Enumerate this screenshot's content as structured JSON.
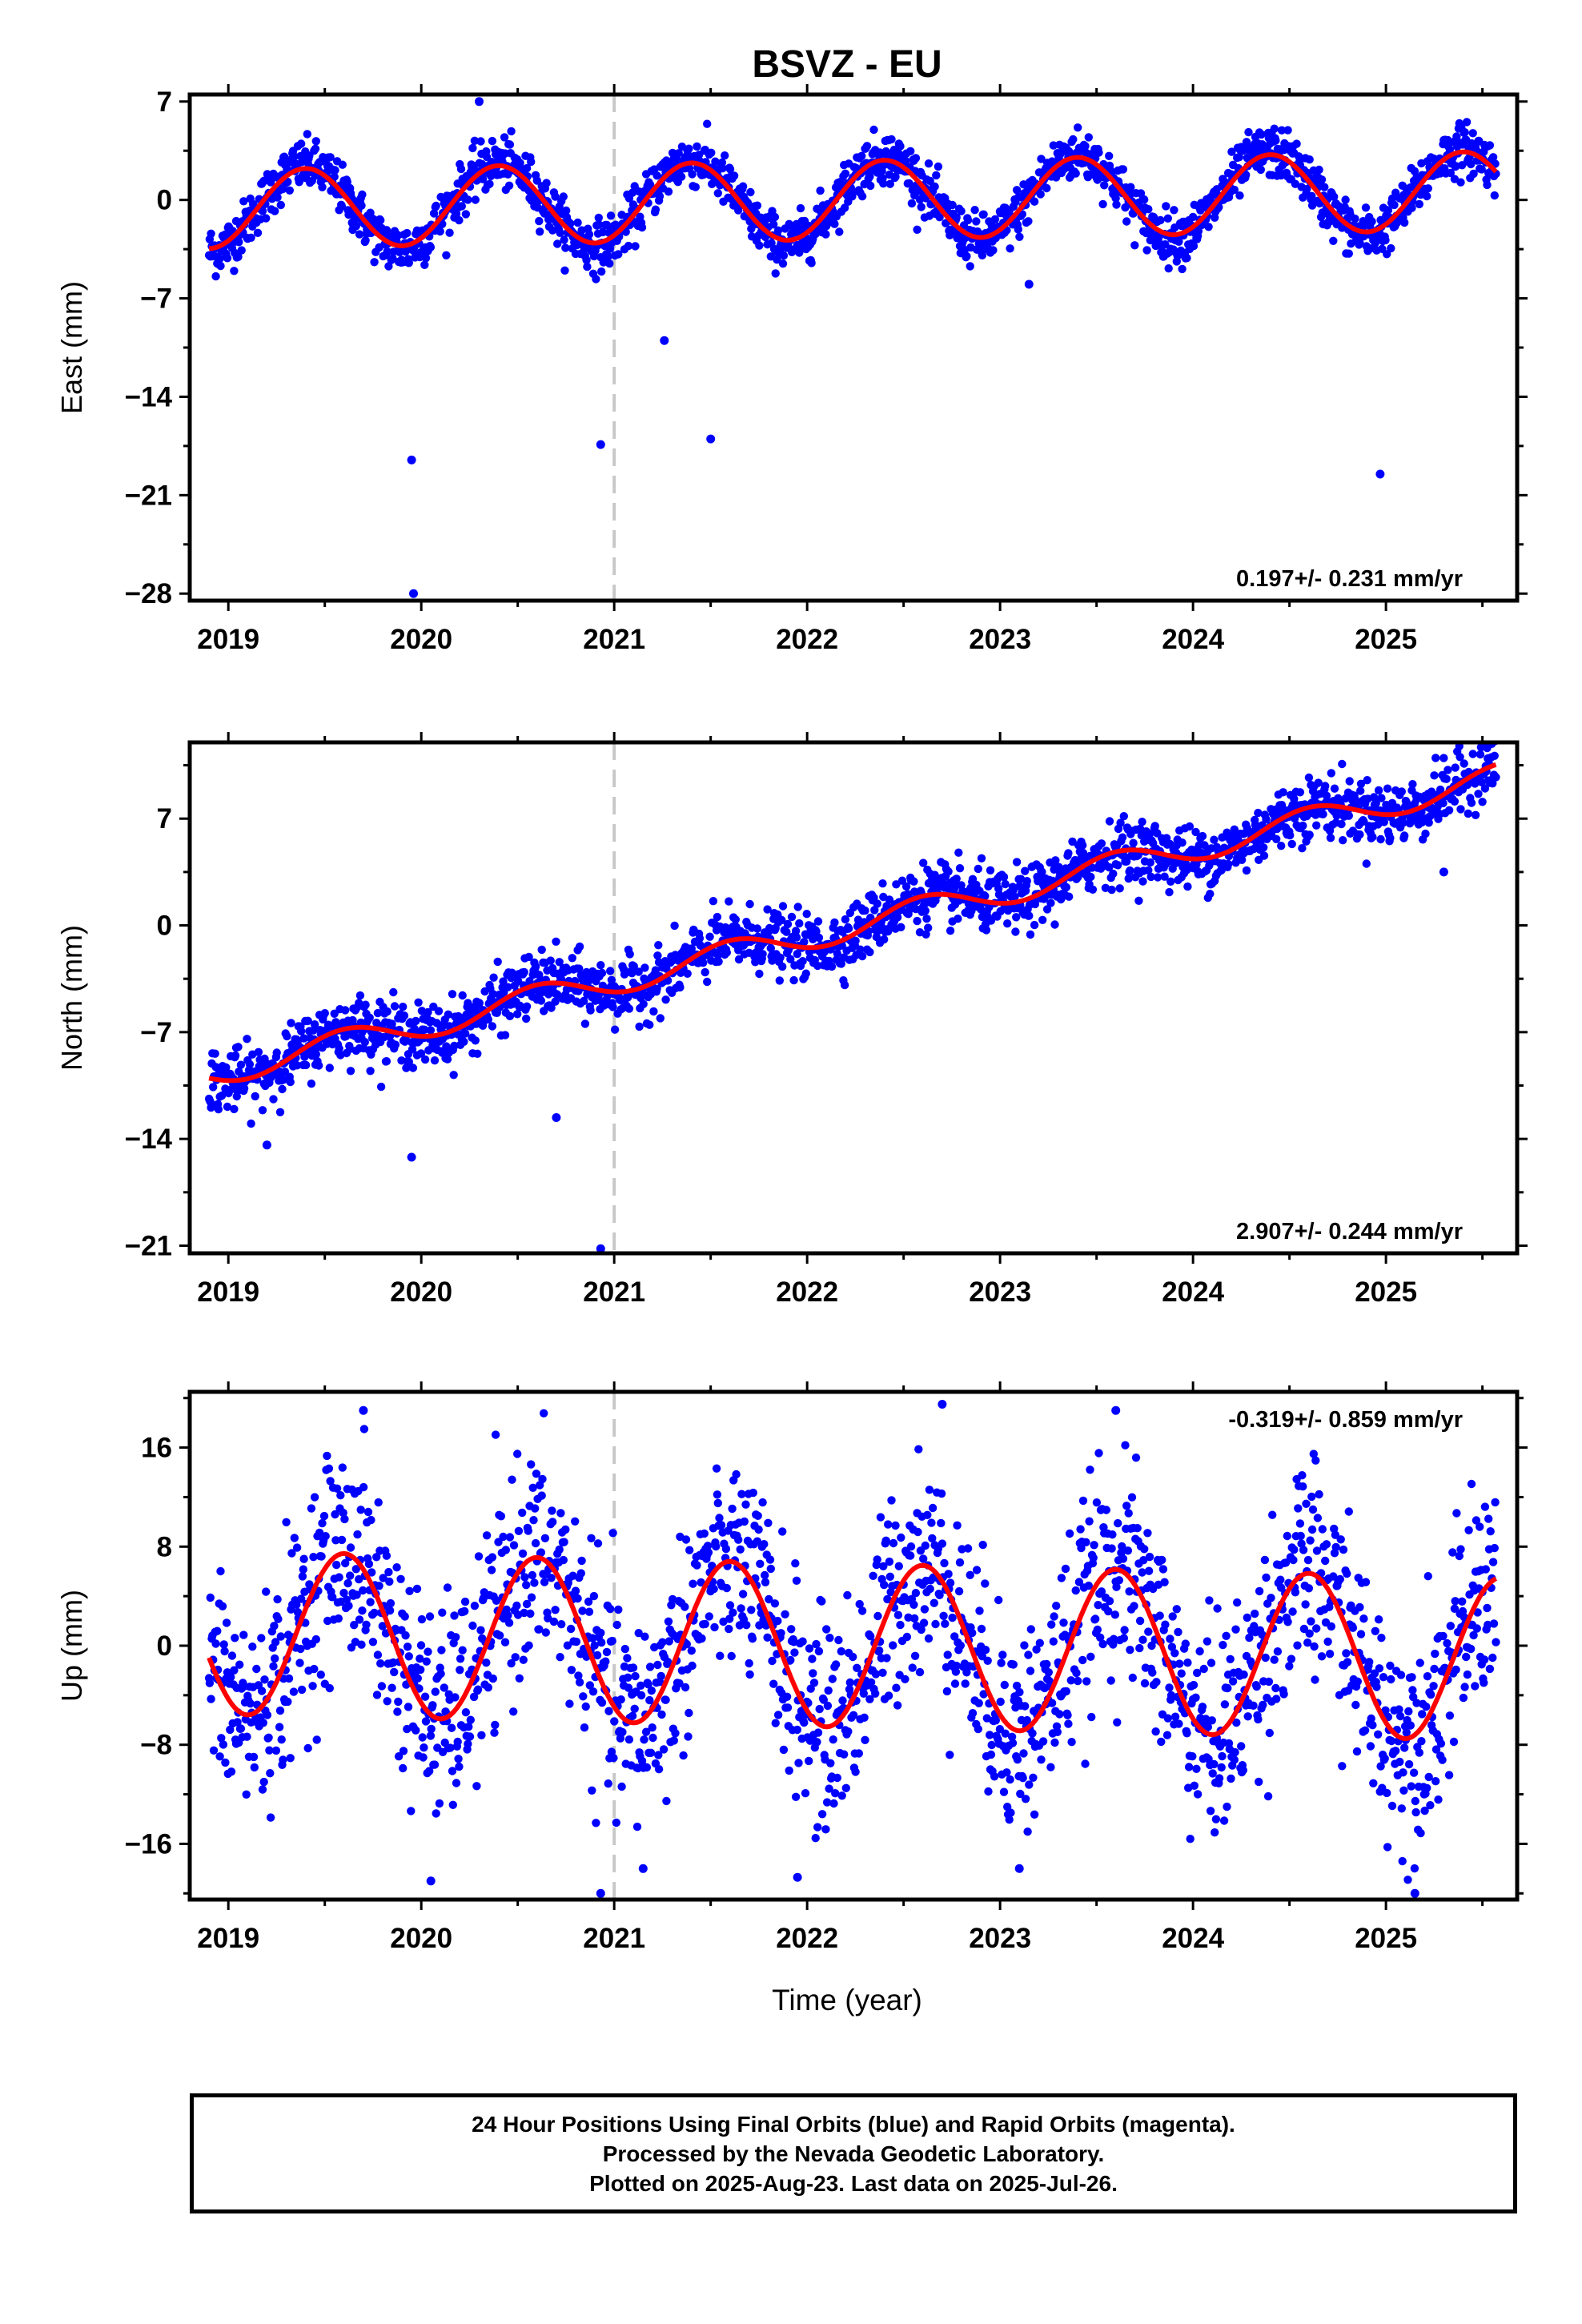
{
  "title": "BSVZ - EU",
  "xlabel": "Time (year)",
  "caption": {
    "line1": "24 Hour Positions Using Final Orbits (blue) and Rapid Orbits (magenta).",
    "line2": "Processed by the Nevada Geodetic Laboratory.",
    "line3": "Plotted on 2025-Aug-23. Last data on 2025-Jul-26."
  },
  "colors": {
    "points": "#0000ff",
    "fit": "#ff0000",
    "marker_line": "#c8c8c8",
    "frame": "#000000"
  },
  "chart_data": [
    {
      "type": "scatter",
      "ylabel": "East (mm)",
      "rate_label": "0.197+/- 0.231 mm/yr",
      "rate_position": "bottom-right",
      "xlim": [
        2018.8,
        2025.68
      ],
      "ylim": [
        -28.5,
        7.5
      ],
      "x_ticks": [
        2019,
        2020,
        2021,
        2022,
        2023,
        2024,
        2025
      ],
      "y_ticks": [
        7,
        0,
        -7,
        -14,
        -21,
        -28
      ],
      "event_line_x": 2021.0,
      "series": [
        {
          "kind": "points",
          "x_start": 2018.9,
          "x_end": 2025.57,
          "trend": 0.197,
          "annual_amplitude": 3.0,
          "annual_peak": 2019.4,
          "scatter_sd": 0.9,
          "outliers": [
            [
              2019.95,
              -18.5
            ],
            [
              2019.96,
              -28.0
            ],
            [
              2020.93,
              -17.4
            ],
            [
              2021.26,
              -10.0
            ],
            [
              2021.5,
              -17.0
            ],
            [
              2024.97,
              -19.5
            ],
            [
              2023.15,
              -6.0
            ],
            [
              2020.3,
              7.0
            ]
          ]
        },
        {
          "kind": "fit",
          "x_start": 2018.9,
          "x_end": 2025.57,
          "trend": 0.197,
          "annual_amplitude": 2.8,
          "annual_peak": 2019.4
        }
      ]
    },
    {
      "type": "scatter",
      "ylabel": "North (mm)",
      "rate_label": "2.907+/- 0.244 mm/yr",
      "rate_position": "bottom-right",
      "xlim": [
        2018.8,
        2025.68
      ],
      "ylim": [
        -21.5,
        12.0
      ],
      "x_ticks": [
        2019,
        2020,
        2021,
        2022,
        2023,
        2024,
        2025
      ],
      "y_ticks": [
        7,
        0,
        -7,
        -14,
        -21
      ],
      "event_line_x": 2021.0,
      "series": [
        {
          "kind": "points",
          "x_start": 2018.9,
          "x_end": 2025.57,
          "trend": 2.907,
          "annual_amplitude": 0.9,
          "annual_peak": 2019.6,
          "scatter_sd": 1.0,
          "outliers": [
            [
              2019.95,
              -15.2
            ],
            [
              2020.7,
              -12.6
            ],
            [
              2020.93,
              -21.2
            ],
            [
              2019.2,
              -14.4
            ],
            [
              2025.3,
              3.5
            ]
          ]
        },
        {
          "kind": "fit",
          "x_start": 2018.9,
          "x_end": 2025.57,
          "trend": 2.907,
          "annual_amplitude": 0.9,
          "annual_peak": 2019.6
        }
      ]
    },
    {
      "type": "scatter",
      "ylabel": "Up (mm)",
      "rate_label": "-0.319+/- 0.859 mm/yr",
      "rate_position": "top-right",
      "xlim": [
        2018.8,
        2025.68
      ],
      "ylim": [
        -20.5,
        20.5
      ],
      "x_ticks": [
        2019,
        2020,
        2021,
        2022,
        2023,
        2024,
        2025
      ],
      "y_ticks": [
        16,
        8,
        0,
        -8,
        -16
      ],
      "event_line_x": 2021.0,
      "series": [
        {
          "kind": "points",
          "x_start": 2018.9,
          "x_end": 2025.57,
          "trend": -0.319,
          "annual_amplitude": 6.6,
          "annual_peak": 2019.6,
          "scatter_sd": 4.2,
          "outliers": [
            [
              2020.05,
              -19.0
            ],
            [
              2020.93,
              -20.0
            ],
            [
              2021.15,
              -18.0
            ],
            [
              2021.95,
              -18.7
            ],
            [
              2023.1,
              -18.0
            ],
            [
              2025.15,
              -20.0
            ],
            [
              2019.7,
              19.0
            ],
            [
              2022.7,
              19.5
            ],
            [
              2023.6,
              19.0
            ]
          ]
        },
        {
          "kind": "fit",
          "x_start": 2018.9,
          "x_end": 2025.57,
          "trend": -0.319,
          "annual_amplitude": 6.6,
          "annual_peak": 2019.6
        }
      ]
    }
  ]
}
